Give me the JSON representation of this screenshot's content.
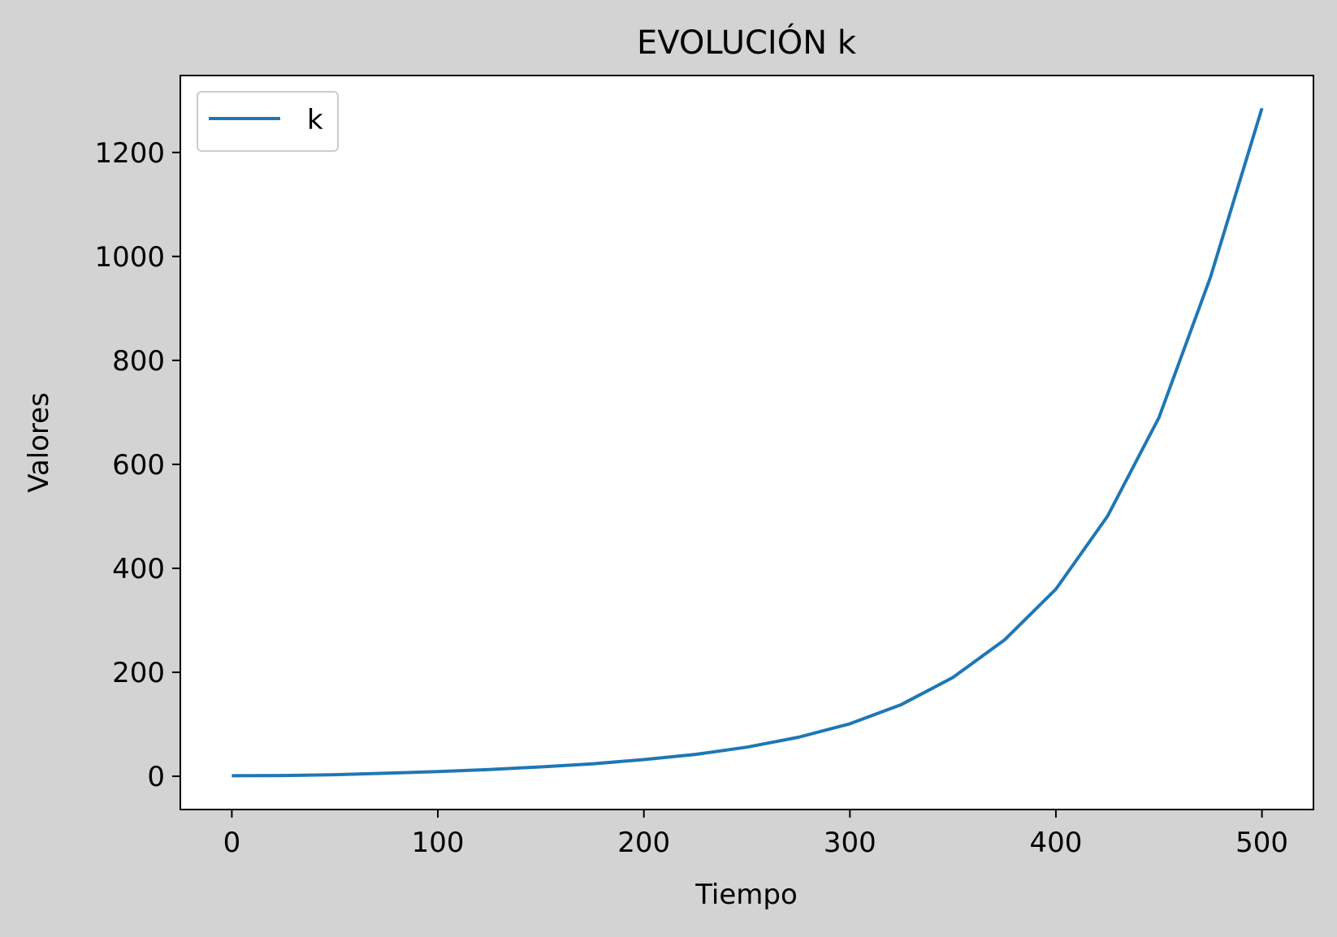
{
  "chart_data": {
    "type": "line",
    "title": "EVOLUCIÓN k",
    "xlabel": "Tiempo",
    "ylabel": "Valores",
    "xlim": [
      -25,
      525
    ],
    "ylim": [
      -64,
      1348
    ],
    "x_ticks": [
      0,
      100,
      200,
      300,
      400,
      500
    ],
    "y_ticks": [
      0,
      200,
      400,
      600,
      800,
      1000,
      1200
    ],
    "grid": false,
    "legend_position": "upper left",
    "series": [
      {
        "name": "k",
        "color": "#1f77b4",
        "x": [
          0,
          25,
          50,
          75,
          100,
          125,
          150,
          175,
          200,
          225,
          250,
          275,
          300,
          325,
          350,
          375,
          400,
          425,
          450,
          475,
          500
        ],
        "y": [
          1,
          1.5,
          3,
          6,
          9,
          13,
          18,
          24,
          32,
          42,
          56,
          75,
          101,
          138,
          190,
          262,
          360,
          500,
          690,
          960,
          1285
        ]
      }
    ]
  },
  "colors": {
    "figure_background": "#d3d3d3",
    "axes_background": "#ffffff",
    "line": "#1f77b4"
  }
}
